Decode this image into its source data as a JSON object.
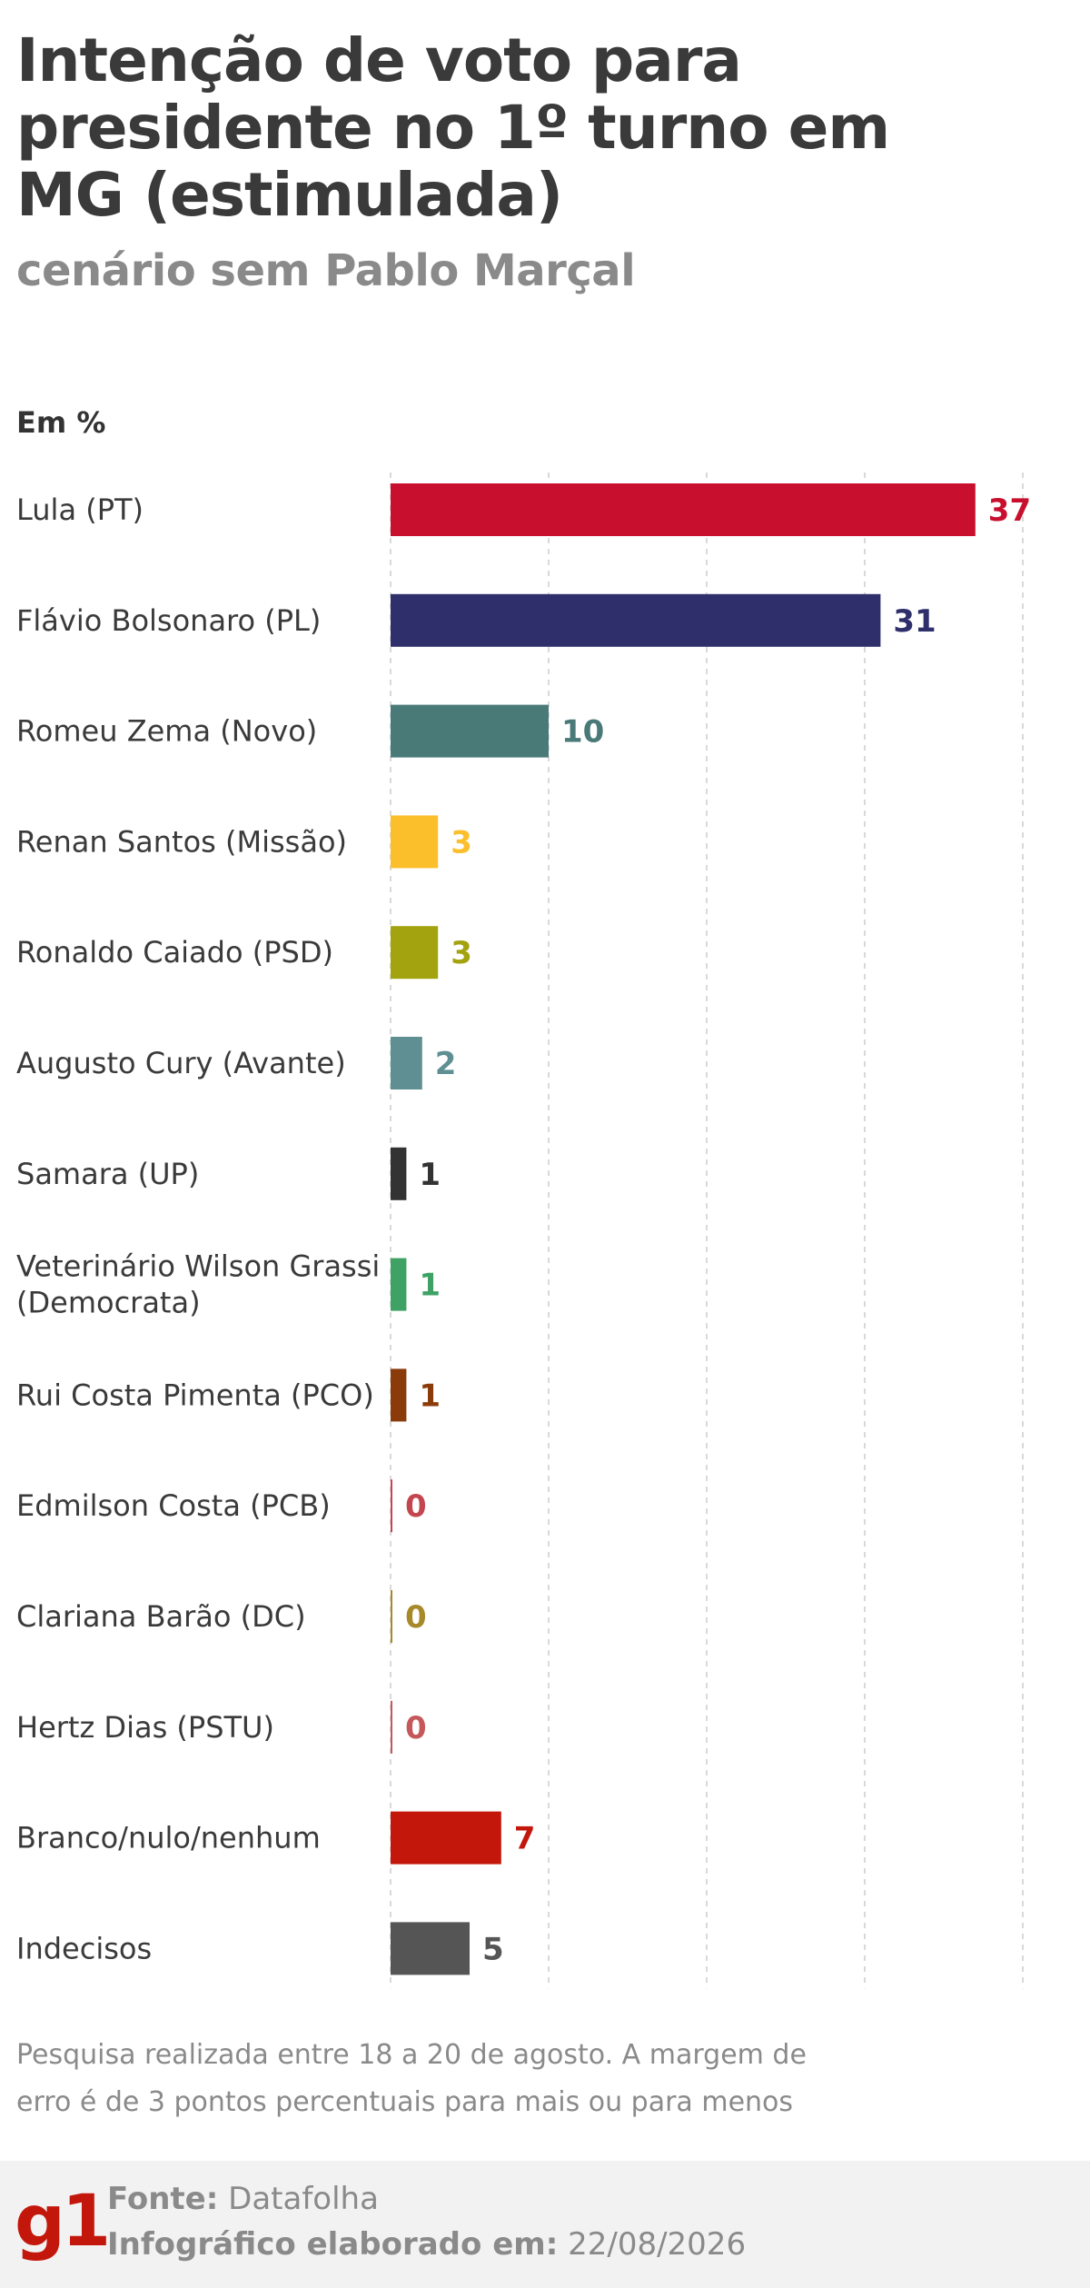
{
  "header": {
    "title": "Intenção de voto para presidente no 1º turno em MG (estimulada)",
    "subtitle": "cenário sem Pablo Marçal"
  },
  "chart_data": {
    "type": "bar",
    "orientation": "horizontal",
    "unit_label": "Em %",
    "xlim": [
      0,
      40
    ],
    "grid": true,
    "categories": [
      "Lula (PT)",
      "Flávio Bolsonaro (PL)",
      "Romeu Zema (Novo)",
      "Renan Santos (Missão)",
      "Ronaldo Caiado (PSD)",
      "Augusto Cury (Avante)",
      "Samara (UP)",
      "Veterinário Wilson Grassi (Democrata)",
      "Rui Costa Pimenta (PCO)",
      "Edmilson Costa (PCB)",
      "Clariana Barão (DC)",
      "Hertz Dias (PSTU)",
      "Branco/nulo/nenhum",
      "Indecisos"
    ],
    "label_lines": [
      [
        "Lula (PT)"
      ],
      [
        "Flávio Bolsonaro (PL)"
      ],
      [
        "Romeu Zema (Novo)"
      ],
      [
        "Renan Santos (Missão)"
      ],
      [
        "Ronaldo Caiado (PSD)"
      ],
      [
        "Augusto Cury (Avante)"
      ],
      [
        "Samara (UP)"
      ],
      [
        "Veterinário Wilson Grassi",
        "(Democrata)"
      ],
      [
        "Rui Costa Pimenta (PCO)"
      ],
      [
        "Edmilson Costa (PCB)"
      ],
      [
        "Clariana Barão (DC)"
      ],
      [
        "Hertz Dias (PSTU)"
      ],
      [
        "Branco/nulo/nenhum"
      ],
      [
        "Indecisos"
      ]
    ],
    "values": [
      37,
      31,
      10,
      3,
      3,
      2,
      1,
      1,
      1,
      0,
      0,
      0,
      7,
      5
    ],
    "colors": [
      "#c8102e",
      "#2f2f6b",
      "#4a7a78",
      "#fbbf2c",
      "#a3a20f",
      "#5f8f93",
      "#333333",
      "#3ea265",
      "#8b3b09",
      "#c4454f",
      "#a8892a",
      "#c4585a",
      "#c4170c",
      "#555555"
    ]
  },
  "note": "Pesquisa realizada entre 18 a 20 de agosto. A margem de erro é de 3 pontos percentuais para mais ou para menos",
  "footer": {
    "logo": "g1",
    "source_label": "Fonte:",
    "source_value": "Datafolha",
    "date_label": "Infográfico elaborado em:",
    "date_value": "22/08/2026"
  }
}
